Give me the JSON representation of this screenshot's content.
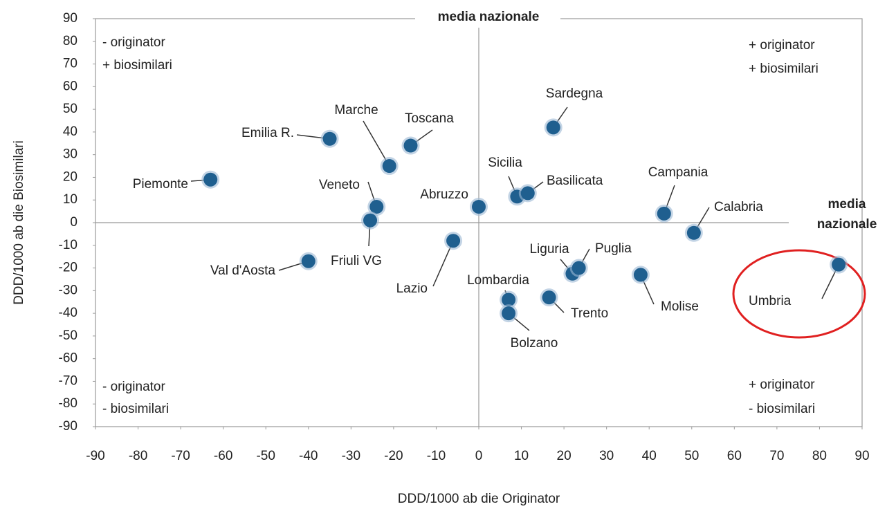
{
  "chart_data": {
    "type": "scatter",
    "x_label": "DDD/1000 ab die Originator",
    "y_label": "DDD/1000 ab die Biosimilari",
    "xlim": [
      -90,
      90
    ],
    "ylim": [
      -90,
      90
    ],
    "xticks": [
      -90,
      -80,
      -70,
      -60,
      -50,
      -40,
      -30,
      -20,
      -10,
      0,
      10,
      20,
      30,
      40,
      50,
      60,
      70,
      80,
      90
    ],
    "yticks": [
      -90,
      -80,
      -70,
      -60,
      -50,
      -40,
      -30,
      -20,
      -10,
      0,
      10,
      20,
      30,
      40,
      50,
      60,
      70,
      80,
      90
    ],
    "color": "#1f5f8f",
    "labels": [
      "Piemonte",
      "Emilia R.",
      "Marche",
      "Toscana",
      "Veneto",
      "Friuli VG",
      "Val d'Aosta",
      "Lazio",
      "Abruzzo",
      "Sicilia",
      "Basilicata",
      "Sardegna",
      "Campania",
      "Calabria",
      "Liguria",
      "Puglia",
      "Molise",
      "Lombardia",
      "Bolzano",
      "Trento",
      "Umbria"
    ],
    "x": [
      -63,
      -35,
      -21,
      -16,
      -24,
      -25.5,
      -40,
      -6,
      0,
      9,
      11.5,
      17.5,
      43.5,
      50.5,
      22,
      23.5,
      38,
      7,
      7,
      16.5,
      84.5
    ],
    "y": [
      19,
      37,
      25,
      34,
      7,
      1,
      -17,
      -8,
      7,
      11.5,
      13,
      42,
      4,
      -4.5,
      -22.5,
      -20,
      -23,
      -34,
      -40,
      -33,
      -18.5
    ],
    "annotations": {
      "top_left": [
        "- originator",
        "+ biosimilari"
      ],
      "top_right": [
        "+ originator",
        "+ biosimilari"
      ],
      "bottom_left": [
        "- originator",
        "- biosimilari"
      ],
      "bottom_right": [
        "+ originator",
        "- biosimilari"
      ],
      "median_top": "media nazionale",
      "median_right": [
        "media",
        "nazionale"
      ]
    }
  }
}
